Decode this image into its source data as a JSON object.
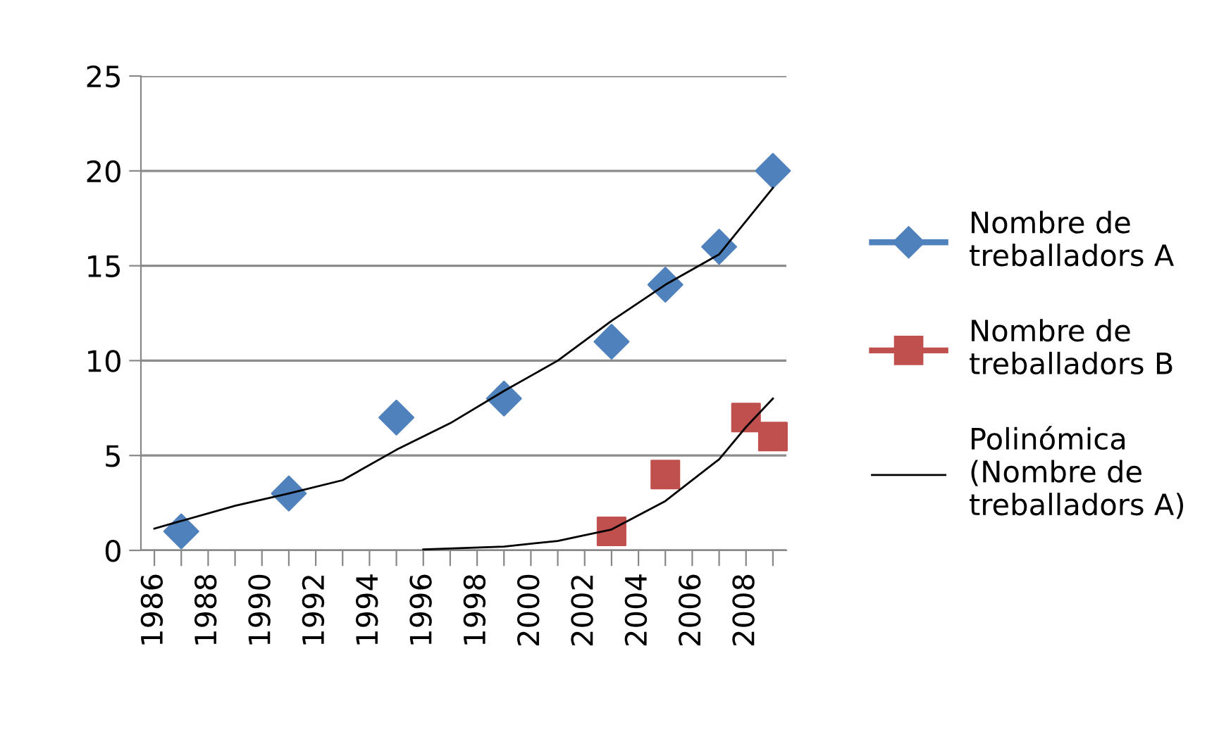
{
  "chart_data": {
    "type": "scatter",
    "xlim": [
      1985.5,
      2009.5
    ],
    "xticks": [
      1986,
      {
        "value": 1987,
        "label": null
      },
      1988,
      {
        "value": 1989,
        "label": null
      },
      1990,
      {
        "value": 1991,
        "label": null
      },
      1992,
      {
        "value": 1993,
        "label": null
      },
      1994,
      {
        "value": 1995,
        "label": null
      },
      1996,
      {
        "value": 1997,
        "label": null
      },
      1998,
      {
        "value": 1999,
        "label": null
      },
      2000,
      {
        "value": 2001,
        "label": null
      },
      2002,
      {
        "value": 2003,
        "label": null
      },
      2004,
      {
        "value": 2005,
        "label": null
      },
      2006,
      {
        "value": 2007,
        "label": null
      },
      2008,
      {
        "value": 2009,
        "label": null
      }
    ],
    "ylim": [
      0,
      25
    ],
    "yticks": [
      0,
      5,
      10,
      15,
      20,
      25
    ],
    "grid": "y",
    "legend": "right",
    "series": [
      {
        "name": "Nombre de treballadors A",
        "color": "#4f81bd",
        "marker": "diamond",
        "x": [
          1987,
          1991,
          1995,
          1999,
          2003,
          2005,
          2007,
          2009
        ],
        "values": [
          1,
          3,
          7,
          8,
          11,
          14,
          16,
          20
        ]
      },
      {
        "name": "Nombre de treballadors B",
        "color": "#c0504d",
        "marker": "square",
        "x": [
          2003,
          2005,
          2008,
          2009
        ],
        "values": [
          1,
          4,
          7,
          6
        ]
      },
      {
        "name": "Polinómica (Nombre de treballadors A)",
        "type": "line",
        "color": "#000000",
        "marker": "none",
        "line_style": "solid",
        "x": [
          1986,
          1989,
          1991,
          1993,
          1995,
          1997,
          1999,
          2001,
          2003,
          2005,
          2007,
          2009
        ],
        "values": [
          1.15,
          2.35,
          3.0,
          3.7,
          5.3,
          6.7,
          8.4,
          10.0,
          12.1,
          14.0,
          15.6,
          19.1
        ]
      },
      {
        "type": "line",
        "color": "#000000",
        "marker": "none",
        "line_style": "solid",
        "x": [
          1996,
          1999,
          2001,
          2003,
          2005,
          2007,
          2008,
          2009
        ],
        "values": [
          0.05,
          0.2,
          0.5,
          1.1,
          2.6,
          4.8,
          6.5,
          8.0
        ]
      }
    ]
  }
}
